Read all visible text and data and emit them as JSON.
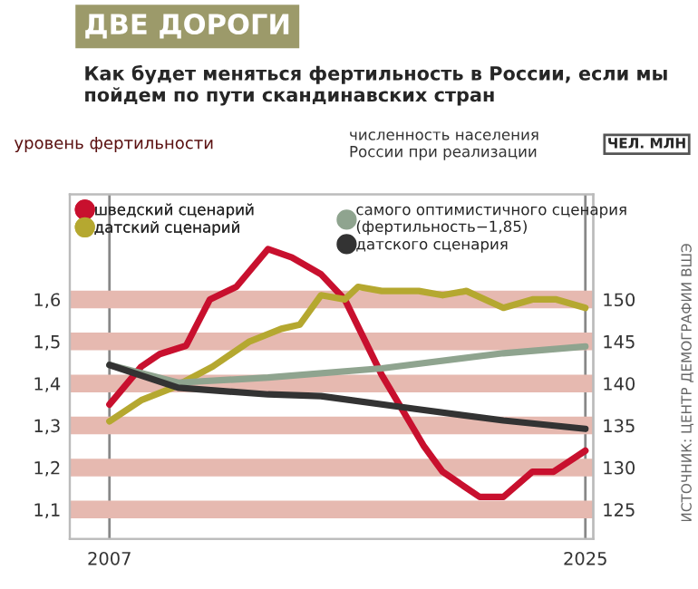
{
  "chart_data": {
    "type": "line",
    "title": "ДВЕ ДОРОГИ",
    "subtitle": "Как будет меняться фертильность в России, если мы пойдем по пути скандинавских стран",
    "ylabel": "уровень фертильности",
    "y2label": "численность населения России при реализации",
    "annotations": [
      "ЧЕЛ. МЛН",
      "ИСТОЧНИК: ЦЕНТР ДЕМОГРАФИИ ВШЭ"
    ],
    "xlim": [
      2005.5,
      2025.3
    ],
    "xticks": [
      2007,
      2025
    ],
    "ylim": [
      1.03,
      1.85
    ],
    "yticks": [
      {
        "value": 1.1,
        "label": "1,1"
      },
      {
        "value": 1.2,
        "label": "1,2"
      },
      {
        "value": 1.3,
        "label": "1,3"
      },
      {
        "value": 1.4,
        "label": "1,4"
      },
      {
        "value": 1.5,
        "label": "1,5"
      },
      {
        "value": 1.6,
        "label": "1,6"
      }
    ],
    "y2lim": [
      121.5,
      162.5
    ],
    "y2ticks": [
      125,
      130,
      135,
      140,
      145,
      150
    ],
    "grid": true,
    "legend": "top",
    "marker": "none",
    "line_style": "solid",
    "series": [
      {
        "name": "шведский сценарий",
        "color": "#c8102e",
        "x": [
          2007,
          2008.2,
          2008.9,
          2009.9,
          2010.8,
          2011.8,
          2013,
          2013.9,
          2015,
          2015.9,
          2017.3,
          2018.9,
          2019.6,
          2021,
          2021.9,
          2023,
          2023.8,
          2025
        ],
        "values": [
          1.35,
          1.44,
          1.47,
          1.49,
          1.6,
          1.63,
          1.72,
          1.7,
          1.66,
          1.6,
          1.42,
          1.25,
          1.19,
          1.13,
          1.13,
          1.19,
          1.19,
          1.24
        ]
      },
      {
        "name": "датский сценарий",
        "color": "#b5a830",
        "x": [
          2007,
          2008.2,
          2009.4,
          2010.9,
          2012.3,
          2013.5,
          2014.2,
          2015,
          2015.9,
          2016.4,
          2017.3,
          2018.7,
          2019.6,
          2020.5,
          2021.9,
          2023,
          2023.9,
          2025
        ],
        "values": [
          1.31,
          1.36,
          1.39,
          1.44,
          1.5,
          1.53,
          1.54,
          1.61,
          1.6,
          1.63,
          1.62,
          1.62,
          1.61,
          1.62,
          1.58,
          1.6,
          1.6,
          1.58
        ]
      },
      {
        "name": "самого оптимистичного сценария (фертильность−1,85)",
        "color": "#8fa48f",
        "axis": "y2",
        "x": [
          2007,
          2009.6,
          2013,
          2017.3,
          2021.9,
          2025
        ],
        "values": [
          142.2,
          140.1,
          140.7,
          141.8,
          143.6,
          144.4
        ]
      },
      {
        "name": "датского сценария",
        "color": "#333333",
        "axis": "y2",
        "x": [
          2007,
          2009.6,
          2013,
          2015,
          2018.5,
          2021.9,
          2025
        ],
        "values": [
          142.2,
          139.5,
          138.7,
          138.5,
          137.0,
          135.6,
          134.6
        ]
      }
    ]
  }
}
